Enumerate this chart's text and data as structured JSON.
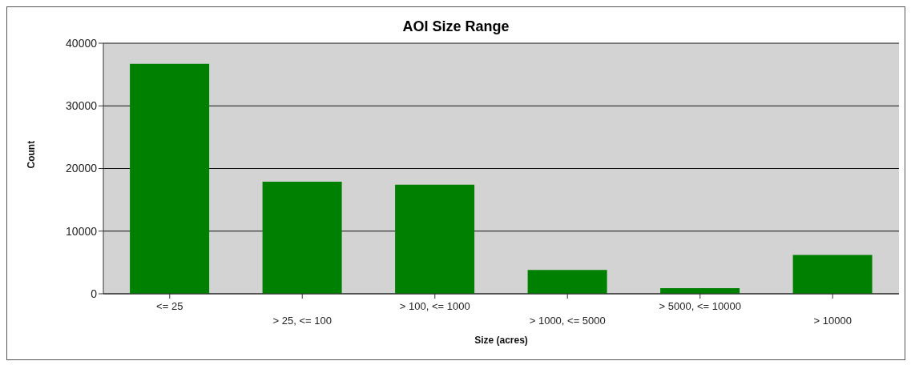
{
  "chart_data": {
    "type": "bar",
    "title": "AOI Size Range",
    "xlabel": "Size (acres)",
    "ylabel": "Count",
    "categories": [
      "<= 25",
      "> 25, <= 100",
      "> 100, <= 1000",
      "> 1000, <= 5000",
      "> 5000, <= 10000",
      "> 10000"
    ],
    "values": [
      36700,
      17900,
      17400,
      3800,
      900,
      6200
    ],
    "color": "#008000",
    "ylim": [
      0,
      40000
    ],
    "yticks": [
      0,
      10000,
      20000,
      30000,
      40000
    ],
    "grid": "y"
  }
}
